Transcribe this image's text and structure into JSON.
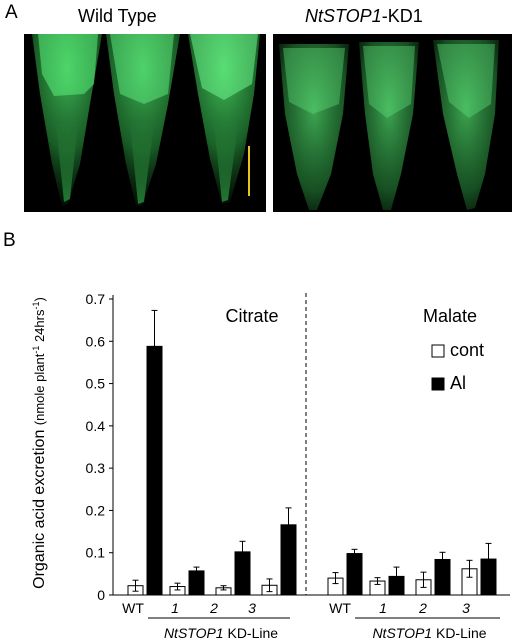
{
  "panel_a": {
    "letter": "A",
    "left_title": "Wild Type",
    "right_title_italic": "NtSTOP1",
    "right_title_suffix": "-KD1"
  },
  "panel_b": {
    "letter": "B"
  },
  "colors": {
    "fluorescence": "#3ccf5a",
    "scale_bar": "#e6c619",
    "cont_fill": "#ffffff",
    "al_fill": "#000000"
  },
  "chart_data": {
    "type": "bar",
    "ylabel": "Organic acid excretion",
    "ylabel_unit": "(nmole plant",
    "ylabel_unit_sup1": "-1",
    "ylabel_unit_mid": " 24hrs",
    "ylabel_unit_sup2": "-1",
    "ylabel_unit_end": ")",
    "ylim": [
      0,
      0.7
    ],
    "yticks": [
      "0",
      "0.1",
      "0.2",
      "0.3",
      "0.4",
      "0.5",
      "0.6",
      "0.7"
    ],
    "legend": [
      "cont",
      "Al"
    ],
    "legend_placement": "right",
    "groups": [
      {
        "label": "Citrate",
        "categories": [
          "WT",
          "1",
          "2",
          "3"
        ],
        "series": [
          {
            "name": "cont",
            "values": [
              0.022,
              0.02,
              0.017,
              0.023
            ],
            "errors": [
              0.013,
              0.008,
              0.005,
              0.015
            ]
          },
          {
            "name": "Al",
            "values": [
              0.588,
              0.057,
              0.102,
              0.166
            ],
            "errors": [
              0.085,
              0.009,
              0.025,
              0.04
            ]
          }
        ],
        "line_label_italic": "NtSTOP1",
        "line_label_suffix": " KD-Line"
      },
      {
        "label": "Malate",
        "categories": [
          "WT",
          "1",
          "2",
          "3"
        ],
        "series": [
          {
            "name": "cont",
            "values": [
              0.04,
              0.033,
              0.036,
              0.062
            ],
            "errors": [
              0.013,
              0.008,
              0.018,
              0.02
            ]
          },
          {
            "name": "Al",
            "values": [
              0.098,
              0.044,
              0.084,
              0.085
            ],
            "errors": [
              0.01,
              0.022,
              0.017,
              0.037
            ]
          }
        ],
        "line_label_italic": "NtSTOP1",
        "line_label_suffix": " KD-Line"
      }
    ]
  }
}
